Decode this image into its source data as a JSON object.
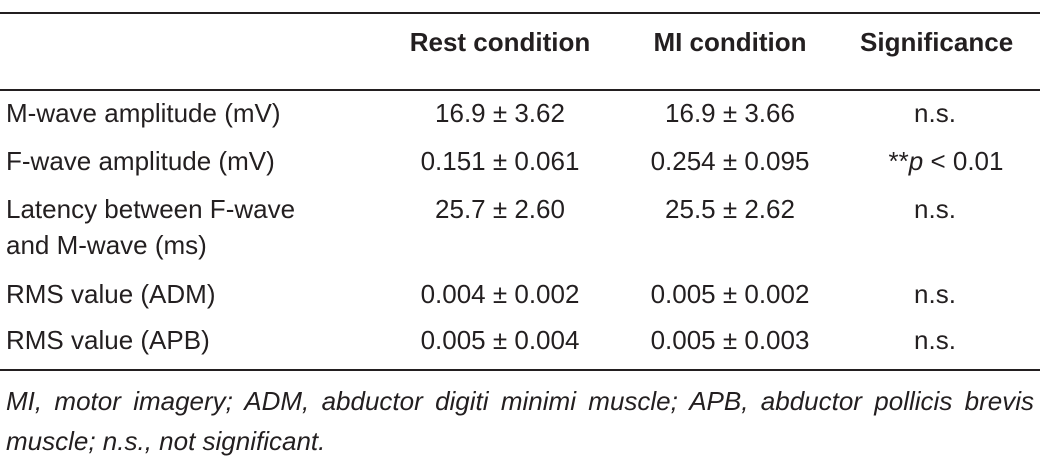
{
  "table": {
    "headers": [
      "",
      "Rest condition",
      "MI condition",
      "Significance"
    ],
    "rows": [
      {
        "label": "M-wave amplitude (mV)",
        "rest": "16.9 ± 3.62",
        "mi": "16.9 ± 3.66",
        "sig": "n.s."
      },
      {
        "label": "F-wave amplitude (mV)",
        "rest": "0.151 ± 0.061",
        "mi": "0.254 ± 0.095",
        "sig_prefix": "**",
        "sig_p": "p",
        "sig_suffix": " < 0.01"
      },
      {
        "label_line1": "Latency between F-wave",
        "label_line2": "and M-wave (ms)",
        "rest": "25.7 ± 2.60",
        "mi": "25.5 ± 2.62",
        "sig": "n.s."
      },
      {
        "label": "RMS value (ADM)",
        "rest": "0.004 ± 0.002",
        "mi": "0.005 ± 0.002",
        "sig": "n.s."
      },
      {
        "label": "RMS value (APB)",
        "rest": "0.005 ± 0.004",
        "mi": "0.005 ± 0.003",
        "sig": "n.s."
      }
    ]
  },
  "footnote": "MI, motor imagery; ADM, abductor digiti minimi muscle; APB, abductor pollicis brevis muscle; n.s., not significant."
}
